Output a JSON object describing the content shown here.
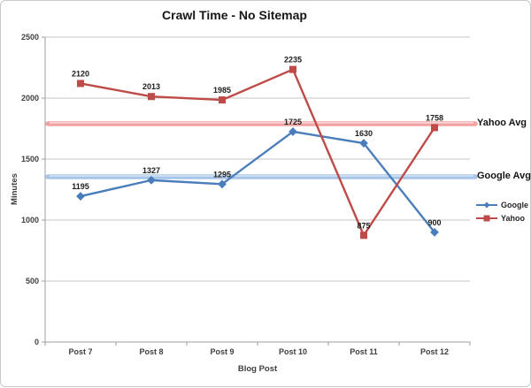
{
  "title": "Crawl Time - No Sitemap",
  "colors": {
    "background": "#ffffff",
    "chart_border": "#c9c9c9",
    "gridline": "#c6c6c6",
    "axis": "#9d9d9d",
    "google_series": "#4a7ebb",
    "yahoo_series": "#be4b48",
    "google_avg_line": "#a7c5e8",
    "yahoo_avg_line": "#f1a3a1",
    "text": "#3f3f3f"
  },
  "chart_data": {
    "type": "line",
    "title": "Crawl Time - No Sitemap",
    "xlabel": "Blog Post",
    "ylabel": "Minutes",
    "categories": [
      "Post 7",
      "Post 8",
      "Post 9",
      "Post 10",
      "Post 11",
      "Post 12"
    ],
    "series": [
      {
        "name": "Google",
        "marker": "diamond",
        "color": "#4a7ebb",
        "values": [
          1195,
          1327,
          1295,
          1725,
          1630,
          900
        ]
      },
      {
        "name": "Yahoo",
        "marker": "square",
        "color": "#be4b48",
        "values": [
          2120,
          2013,
          1985,
          2235,
          875,
          1758
        ]
      }
    ],
    "reference_lines": [
      {
        "label": "Yahoo Avg",
        "value": 1790,
        "color": "#f1a3a1"
      },
      {
        "label": "Google Avg",
        "value": 1355,
        "color": "#a7c5e8"
      }
    ],
    "ylim": [
      0,
      2500
    ],
    "yticks": [
      0,
      500,
      1000,
      1500,
      2000,
      2500
    ],
    "grid": true,
    "data_labels": true,
    "legend_position": "right"
  }
}
